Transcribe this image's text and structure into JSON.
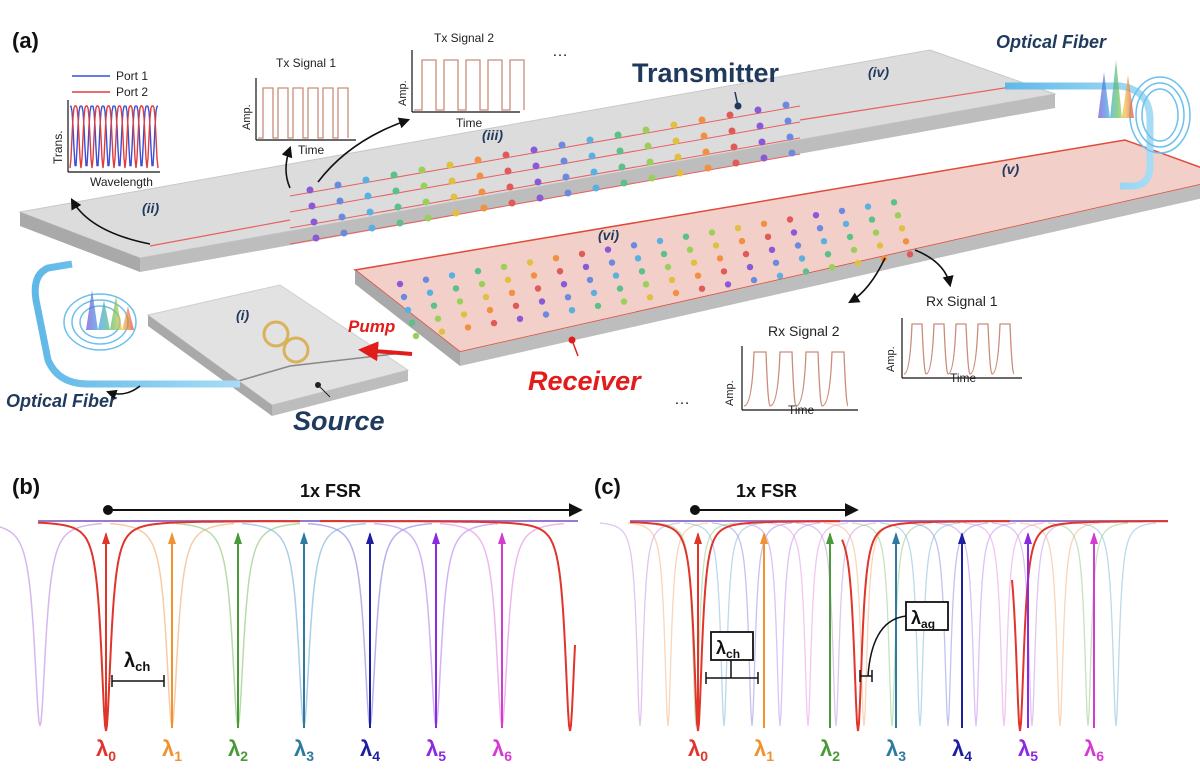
{
  "panel_a": {
    "label": "(a)",
    "transmitter": "Transmitter",
    "receiver": "Receiver",
    "source": "Source",
    "pump": "Pump",
    "optical_fiber_top": "Optical Fiber",
    "optical_fiber_bottom": "Optical Fiber",
    "stage_i": "(i)",
    "stage_ii": "(ii)",
    "stage_iii": "(iii)",
    "stage_iv": "(iv)",
    "stage_v": "(v)",
    "stage_vi": "(vi)",
    "ellipsis": "…",
    "inset_trans": {
      "legend": [
        "Port 1",
        "Port 2"
      ],
      "ylabel": "Trans.",
      "xlabel": "Wavelength",
      "colors": [
        "#3a4fd6",
        "#e23b3b"
      ]
    },
    "tx1": {
      "title": "Tx Signal 1",
      "ylabel": "Amp.",
      "xlabel": "Time"
    },
    "tx2": {
      "title": "Tx Signal 2",
      "ylabel": "Amp.",
      "xlabel": "Time"
    },
    "rx1": {
      "title": "Rx Signal 1",
      "ylabel": "Amp.",
      "xlabel": "Time"
    },
    "rx2": {
      "title": "Rx Signal 2",
      "ylabel": "Amp.",
      "xlabel": "Time"
    },
    "colors": {
      "navy": "#1f3a5c",
      "red": "#e21b1b",
      "chip": "#e6e6e6",
      "rx_chip": "#f1c9c2",
      "fiber": "#7cc8ee"
    }
  },
  "panel_b": {
    "label": "(b)",
    "fsr": "1x FSR",
    "spacing_main": "λ",
    "spacing_sub": "ch",
    "lambdas": [
      {
        "main": "λ",
        "sub": "0",
        "color": "#e0352b"
      },
      {
        "main": "λ",
        "sub": "1",
        "color": "#f0922e"
      },
      {
        "main": "λ",
        "sub": "2",
        "color": "#4a9a3a"
      },
      {
        "main": "λ",
        "sub": "3",
        "color": "#2f7aa0"
      },
      {
        "main": "λ",
        "sub": "4",
        "color": "#1c1fa0"
      },
      {
        "main": "λ",
        "sub": "5",
        "color": "#8a2be2"
      },
      {
        "main": "λ",
        "sub": "6",
        "color": "#d43bd0"
      }
    ]
  },
  "panel_c": {
    "label": "(c)",
    "fsr": "1x FSR",
    "spacing_ch_main": "λ",
    "spacing_ch_sub": "ch",
    "spacing_ag_main": "λ",
    "spacing_ag_sub": "ag",
    "lambdas": [
      {
        "main": "λ",
        "sub": "0",
        "color": "#e0352b"
      },
      {
        "main": "λ",
        "sub": "1",
        "color": "#f0922e"
      },
      {
        "main": "λ",
        "sub": "2",
        "color": "#4a9a3a"
      },
      {
        "main": "λ",
        "sub": "3",
        "color": "#2f7aa0"
      },
      {
        "main": "λ",
        "sub": "4",
        "color": "#1c1fa0"
      },
      {
        "main": "λ",
        "sub": "5",
        "color": "#8a2be2"
      },
      {
        "main": "λ",
        "sub": "6",
        "color": "#d43bd0"
      }
    ]
  }
}
